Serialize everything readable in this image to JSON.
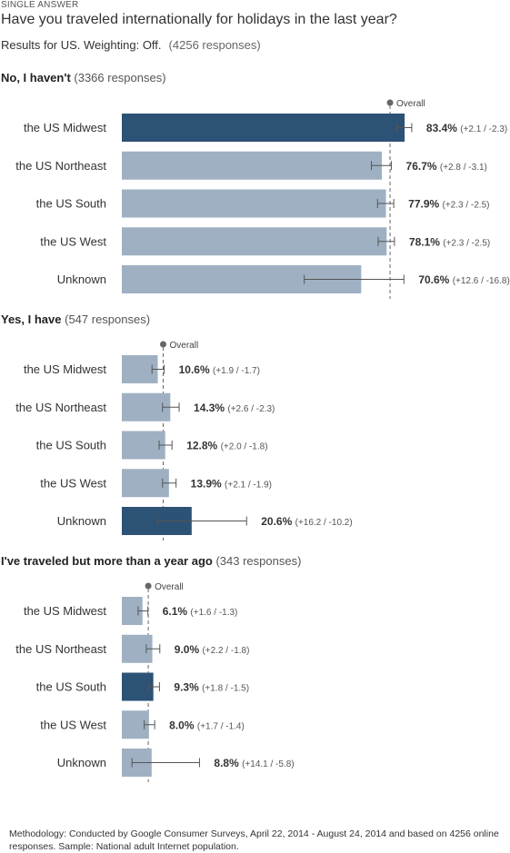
{
  "header": {
    "kicker": "SINGLE ANSWER",
    "question": "Have you traveled internationally for holidays in the last year?",
    "results_text": "Results for US. Weighting: Off.",
    "responses_text": "(4256 responses)"
  },
  "footer": {
    "methodology": "Methodology: Conducted by Google Consumer Surveys, April 22, 2014 - August 24, 2014 and based on 4256 online responses. Sample: National adult Internet population."
  },
  "colors": {
    "bar_default": "#9fb0c3",
    "bar_highlight": "#2c5275",
    "overall_marker": "#666666",
    "error_bar": "#555555"
  },
  "chart_data": {
    "type": "bar",
    "orientation": "horizontal",
    "overall_label": "Overall",
    "categories": [
      "the US Midwest",
      "the US Northeast",
      "the US South",
      "the US West",
      "Unknown"
    ],
    "panels": [
      {
        "title": "No, I haven't",
        "responses": "(3366 responses)",
        "overall": 79.1,
        "bars": [
          {
            "category": "the US Midwest",
            "value": 83.4,
            "value_label": "83.4%",
            "err_plus": 2.1,
            "err_minus": 2.3,
            "err_label": "(+2.1 / -2.3)",
            "highlight": true
          },
          {
            "category": "the US Northeast",
            "value": 76.7,
            "value_label": "76.7%",
            "err_plus": 2.8,
            "err_minus": 3.1,
            "err_label": "(+2.8 / -3.1)",
            "highlight": false
          },
          {
            "category": "the US South",
            "value": 77.9,
            "value_label": "77.9%",
            "err_plus": 2.3,
            "err_minus": 2.5,
            "err_label": "(+2.3 / -2.5)",
            "highlight": false
          },
          {
            "category": "the US West",
            "value": 78.1,
            "value_label": "78.1%",
            "err_plus": 2.3,
            "err_minus": 2.5,
            "err_label": "(+2.3 / -2.5)",
            "highlight": false
          },
          {
            "category": "Unknown",
            "value": 70.6,
            "value_label": "70.6%",
            "err_plus": 12.6,
            "err_minus": 16.8,
            "err_label": "(+12.6 / -16.8)",
            "highlight": false
          }
        ]
      },
      {
        "title": "Yes, I have",
        "responses": "(547 responses)",
        "overall": 12.2,
        "bars": [
          {
            "category": "the US Midwest",
            "value": 10.6,
            "value_label": "10.6%",
            "err_plus": 1.9,
            "err_minus": 1.7,
            "err_label": "(+1.9 / -1.7)",
            "highlight": false
          },
          {
            "category": "the US Northeast",
            "value": 14.3,
            "value_label": "14.3%",
            "err_plus": 2.6,
            "err_minus": 2.3,
            "err_label": "(+2.6 / -2.3)",
            "highlight": false
          },
          {
            "category": "the US South",
            "value": 12.8,
            "value_label": "12.8%",
            "err_plus": 2.0,
            "err_minus": 1.8,
            "err_label": "(+2.0 / -1.8)",
            "highlight": false
          },
          {
            "category": "the US West",
            "value": 13.9,
            "value_label": "13.9%",
            "err_plus": 2.1,
            "err_minus": 1.9,
            "err_label": "(+2.1 / -1.9)",
            "highlight": false
          },
          {
            "category": "Unknown",
            "value": 20.6,
            "value_label": "20.6%",
            "err_plus": 16.2,
            "err_minus": 10.2,
            "err_label": "(+16.2 / -10.2)",
            "highlight": true
          }
        ]
      },
      {
        "title": "I've traveled but more than a year ago",
        "responses": "(343 responses)",
        "overall": 7.8,
        "bars": [
          {
            "category": "the US Midwest",
            "value": 6.1,
            "value_label": "6.1%",
            "err_plus": 1.6,
            "err_minus": 1.3,
            "err_label": "(+1.6 / -1.3)",
            "highlight": false
          },
          {
            "category": "the US Northeast",
            "value": 9.0,
            "value_label": "9.0%",
            "err_plus": 2.2,
            "err_minus": 1.8,
            "err_label": "(+2.2 / -1.8)",
            "highlight": false
          },
          {
            "category": "the US South",
            "value": 9.3,
            "value_label": "9.3%",
            "err_plus": 1.8,
            "err_minus": 1.5,
            "err_label": "(+1.8 / -1.5)",
            "highlight": true
          },
          {
            "category": "the US West",
            "value": 8.0,
            "value_label": "8.0%",
            "err_plus": 1.7,
            "err_minus": 1.4,
            "err_label": "(+1.7 / -1.4)",
            "highlight": false
          },
          {
            "category": "Unknown",
            "value": 8.8,
            "value_label": "8.8%",
            "err_plus": 14.1,
            "err_minus": 5.8,
            "err_label": "(+14.1 / -5.8)",
            "highlight": false
          }
        ]
      }
    ]
  }
}
